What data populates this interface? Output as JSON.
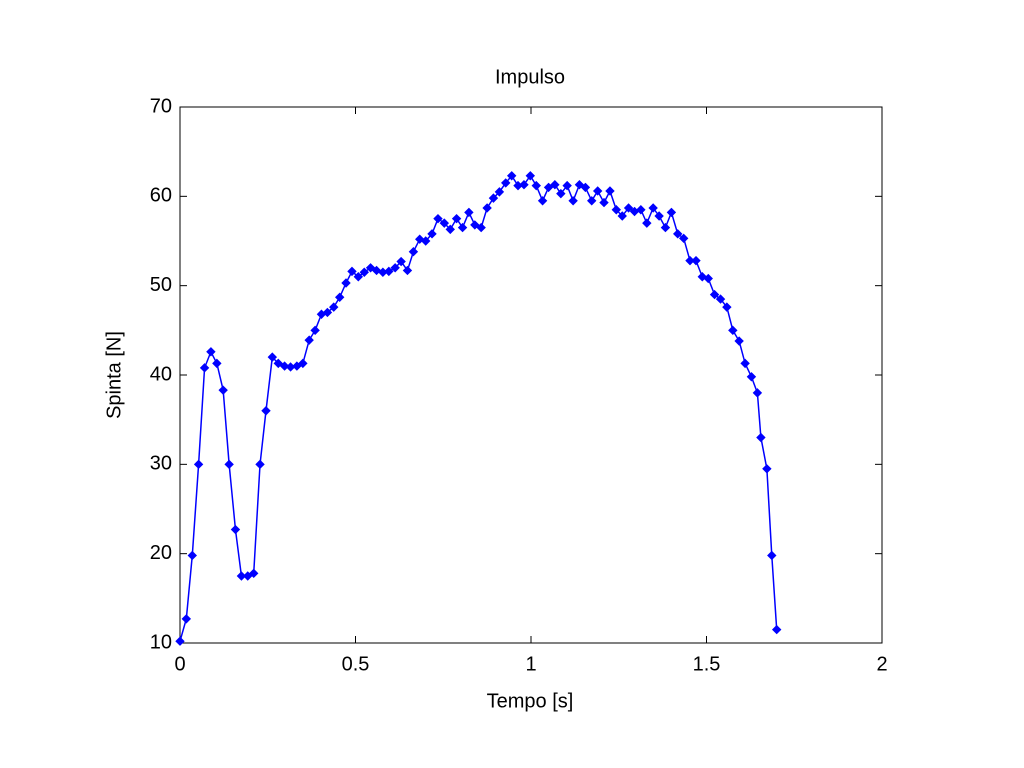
{
  "chart_data": {
    "type": "line",
    "title": "Impulso",
    "x_label": "Tempo [s]",
    "y_label": "Spinta [N]",
    "color": "#0000ff",
    "marker": "diamond",
    "xlim": [
      0,
      2
    ],
    "xticks": [
      0,
      0.5,
      1,
      1.5,
      2
    ],
    "ylim": [
      10,
      70
    ],
    "yticks": [
      10,
      20,
      30,
      40,
      50,
      60,
      70
    ],
    "x": [
      0,
      0.018,
      0.035,
      0.053,
      0.07,
      0.088,
      0.105,
      0.123,
      0.14,
      0.158,
      0.175,
      0.193,
      0.21,
      0.228,
      0.245,
      0.263,
      0.28,
      0.298,
      0.315,
      0.333,
      0.35,
      0.368,
      0.385,
      0.403,
      0.42,
      0.438,
      0.455,
      0.473,
      0.49,
      0.508,
      0.525,
      0.543,
      0.56,
      0.578,
      0.595,
      0.613,
      0.63,
      0.648,
      0.665,
      0.683,
      0.7,
      0.718,
      0.735,
      0.753,
      0.77,
      0.788,
      0.805,
      0.823,
      0.84,
      0.858,
      0.875,
      0.893,
      0.91,
      0.928,
      0.945,
      0.963,
      0.98,
      0.998,
      1.015,
      1.033,
      1.05,
      1.068,
      1.085,
      1.103,
      1.12,
      1.138,
      1.155,
      1.173,
      1.19,
      1.208,
      1.225,
      1.243,
      1.26,
      1.278,
      1.295,
      1.313,
      1.33,
      1.348,
      1.365,
      1.383,
      1.4,
      1.418,
      1.435,
      1.453,
      1.47,
      1.488,
      1.505,
      1.523,
      1.54,
      1.558,
      1.575,
      1.593,
      1.61,
      1.628,
      1.645,
      1.655,
      1.672,
      1.686,
      1.7
    ],
    "values": [
      10.2,
      12.7,
      19.8,
      30,
      40.8,
      42.6,
      41.3,
      38.3,
      30,
      22.7,
      17.5,
      17.5,
      17.8,
      30,
      36,
      42,
      41.3,
      41,
      40.9,
      41,
      41.3,
      43.9,
      45,
      46.8,
      47,
      47.6,
      48.7,
      50.3,
      51.6,
      51,
      51.5,
      52,
      51.7,
      51.5,
      51.6,
      52,
      52.7,
      51.7,
      53.8,
      55.2,
      55,
      55.8,
      57.5,
      57,
      56.3,
      57.5,
      56.5,
      58.2,
      56.8,
      56.5,
      58.7,
      59.8,
      60.5,
      61.5,
      62.3,
      61.2,
      61.3,
      62.3,
      61.2,
      59.5,
      61,
      61.3,
      60.3,
      61.2,
      59.5,
      61.3,
      61,
      59.5,
      60.6,
      59.3,
      60.6,
      58.5,
      57.8,
      58.7,
      58.3,
      58.5,
      57,
      58.7,
      57.8,
      56.5,
      58.2,
      55.8,
      55.3,
      52.8,
      52.8,
      51,
      50.8,
      49,
      48.5,
      47.6,
      45,
      43.8,
      41.3,
      39.8,
      38,
      33,
      29.5,
      19.8,
      11.5
    ]
  }
}
